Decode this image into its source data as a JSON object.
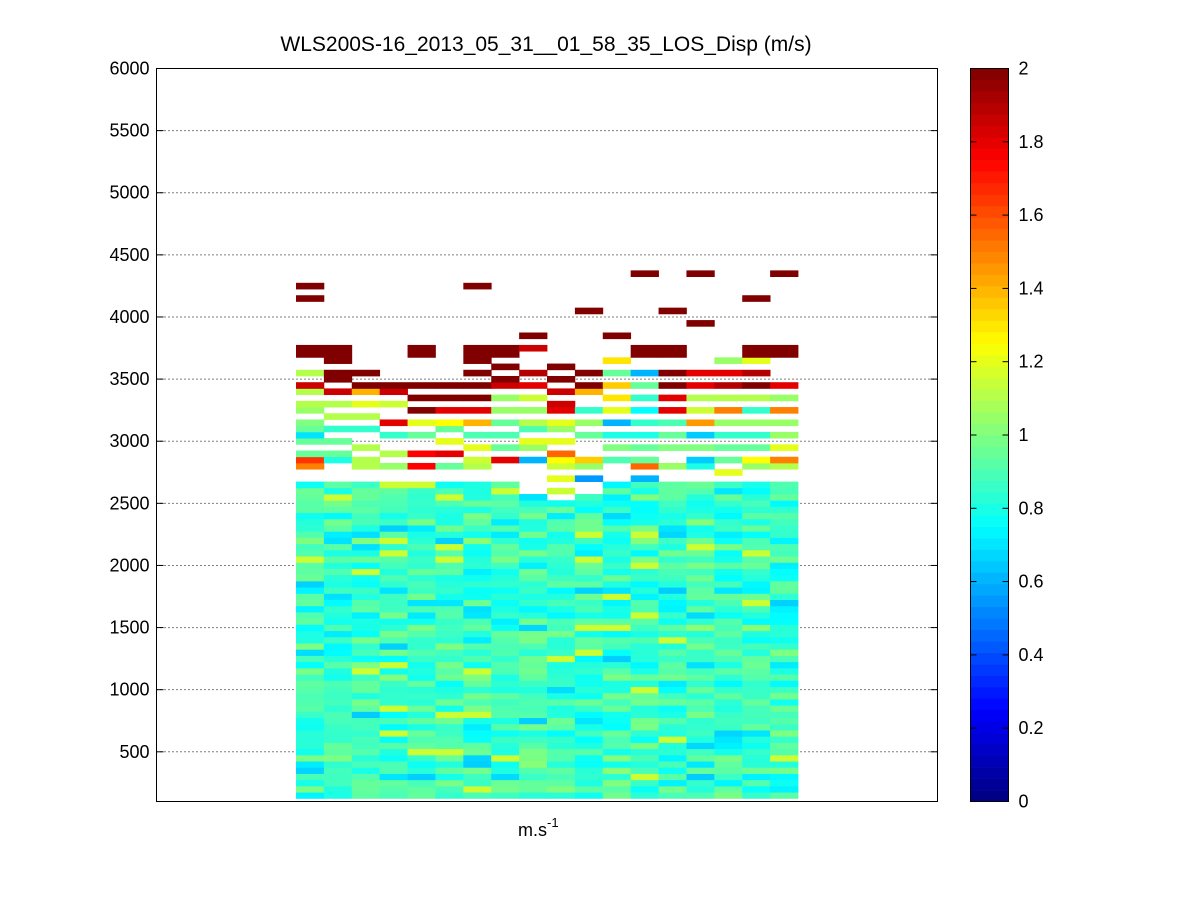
{
  "chart_data": {
    "type": "heatmap",
    "title": "WLS200S-16_2013_05_31__01_58_35_LOS_Disp (m/s)",
    "xlabel": "m.s",
    "xlabel_superscript": "-1",
    "ylabel": "",
    "ylim": [
      100,
      6000
    ],
    "y_ticks": [
      500,
      1000,
      1500,
      2000,
      2500,
      3000,
      3500,
      4000,
      4500,
      5000,
      5500,
      6000
    ],
    "grid": "horizontal dotted",
    "colorbar": {
      "colormap": "jet",
      "clim": [
        0,
        2
      ],
      "ticks": [
        0,
        0.2,
        0.4,
        0.6,
        0.8,
        1,
        1.2,
        1.4,
        1.6,
        1.8,
        2
      ]
    },
    "columns": 18,
    "gate_spacing": 50,
    "first_gate_altitude": 150,
    "columns_data": [
      {
        "low_gates": 51,
        "upper": {
          "2800": 1.5,
          "2850": 1.65,
          "2900": 0.95,
          "3000": 0.95,
          "3050": 0.7,
          "3100": 0.95,
          "3150": 1.0,
          "3250": 1.05,
          "3300": 1.1,
          "3400": 1.1,
          "3450": 1.85,
          "3550": 1.1,
          "3750": 2.0,
          "4150": 2.0,
          "4250": 2.0
        }
      },
      {
        "low_gates": 51,
        "upper": {
          "2850": 0.8,
          "2900": 0.95,
          "3000": 0.95,
          "3100": 0.85,
          "3200": 1.1,
          "3300": 1.1,
          "3400": 1.85,
          "3500": 2.0,
          "3550": 2.0,
          "3650": 2.0,
          "3750": 2.0
        }
      },
      {
        "low_gates": 51,
        "upper": {
          "2800": 1.1,
          "2850": 1.1,
          "2950": 1.1,
          "3100": 0.85,
          "3200": 1.1,
          "3300": 1.2,
          "3400": 1.4,
          "3450": 2.0,
          "3550": 2.0
        }
      },
      {
        "low_gates": 51,
        "upper": {
          "2800": 1.05,
          "2900": 1.1,
          "3050": 0.85,
          "3150": 1.8,
          "3300": 1.15,
          "3400": 1.85,
          "3450": 2.0
        }
      },
      {
        "low_gates": 51,
        "upper": {
          "2800": 1.75,
          "2900": 1.75,
          "3050": 0.95,
          "3150": 1.2,
          "3250": 2.0,
          "3350": 2.0,
          "3450": 2.0,
          "3750": 2.0
        }
      },
      {
        "low_gates": 51,
        "upper": {
          "2800": 0.95,
          "2900": 1.8,
          "3000": 1.2,
          "3100": 0.95,
          "3150": 1.25,
          "3250": 1.8,
          "3350": 2.0,
          "3450": 2.0
        }
      },
      {
        "low_gates": 51,
        "upper": {
          "2800": 1.1,
          "2850": 1.15,
          "2950": 1.2,
          "3050": 0.9,
          "3150": 1.4,
          "3250": 1.8,
          "3350": 2.0,
          "3450": 2.0,
          "3550": 2.0,
          "3650": 2.0,
          "3750": 2.0,
          "4250": 2.0
        }
      },
      {
        "low_gates": 51,
        "upper": {
          "2850": 1.8,
          "2950": 0.95,
          "3050": 0.9,
          "3150": 0.95,
          "3250": 1.05,
          "3350": 1.05,
          "3450": 1.85,
          "3500": 2.0,
          "3600": 2.0,
          "3750": 2.0
        }
      },
      {
        "low_gates": 49,
        "upper": {
          "2850": 0.6,
          "2950": 1.05,
          "3000": 1.2,
          "3100": 0.9,
          "3150": 1.1,
          "3250": 1.05,
          "3350": 1.15,
          "3450": 1.8,
          "3550": 1.9,
          "3750": 1.85,
          "3850": 2.0
        }
      },
      {
        "low_gates": 48,
        "upper": {
          "2600": 1.15,
          "2700": 1.2,
          "2800": 1.15,
          "2850": 1.25,
          "2900": 1.55,
          "3000": 1.2,
          "3100": 1.05,
          "3150": 1.2,
          "3250": 1.8,
          "3300": 1.85,
          "3400": 1.85,
          "3500": 2.0,
          "3600": 2.0
        }
      },
      {
        "low_gates": 49,
        "upper": {
          "2700": 0.55,
          "2800": 1.05,
          "2850": 1.35,
          "3050": 0.95,
          "3150": 1.05,
          "3250": 0.85,
          "3400": 1.4,
          "3450": 2.0,
          "3550": 2.0,
          "4050": 2.0
        }
      },
      {
        "low_gates": 51,
        "upper": {
          "2850": 0.9,
          "2950": 1.0,
          "3050": 0.8,
          "3150": 0.6,
          "3250": 1.2,
          "3350": 1.3,
          "3450": 1.35,
          "3550": 0.95,
          "3650": 1.3,
          "3850": 2.0
        }
      },
      {
        "low_gates": 51,
        "upper": {
          "2700": 0.6,
          "2800": 1.55,
          "2850": 0.95,
          "2950": 0.95,
          "3050": 0.8,
          "3150": 0.85,
          "3250": 0.75,
          "3350": 0.85,
          "3450": 0.95,
          "3550": 0.6,
          "3750": 2.0,
          "4350": 2.0
        }
      },
      {
        "low_gates": 51,
        "upper": {
          "2800": 1.05,
          "2950": 1.0,
          "3050": 0.95,
          "3150": 0.9,
          "3250": 1.8,
          "3350": 1.8,
          "3450": 2.0,
          "3550": 2.0,
          "3750": 2.0,
          "4050": 2.0
        }
      },
      {
        "low_gates": 51,
        "upper": {
          "2800": 0.8,
          "2850": 0.65,
          "2950": 1.0,
          "3050": 0.65,
          "3150": 1.45,
          "3250": 1.15,
          "3350": 1.1,
          "3450": 1.8,
          "3550": 1.8,
          "3950": 2.0,
          "4350": 2.0
        }
      },
      {
        "low_gates": 51,
        "upper": {
          "2750": 1.2,
          "2850": 0.95,
          "2950": 0.95,
          "3050": 0.85,
          "3150": 1.05,
          "3250": 1.5,
          "3350": 1.1,
          "3450": 1.9,
          "3550": 1.8,
          "3650": 1.05
        }
      },
      {
        "low_gates": 51,
        "upper": {
          "2800": 1.05,
          "2850": 1.25,
          "2950": 0.95,
          "3050": 0.85,
          "3150": 1.05,
          "3250": 0.85,
          "3350": 1.1,
          "3450": 2.0,
          "3550": 1.9,
          "3650": 1.2,
          "3750": 2.0,
          "4150": 2.0
        }
      },
      {
        "low_gates": 51,
        "upper": {
          "2800": 1.1,
          "2850": 1.5,
          "2950": 1.2,
          "3050": 1.05,
          "3150": 1.05,
          "3250": 1.5,
          "3350": 1.05,
          "3450": 1.8,
          "3750": 2.0,
          "4350": 2.0
        }
      }
    ]
  }
}
